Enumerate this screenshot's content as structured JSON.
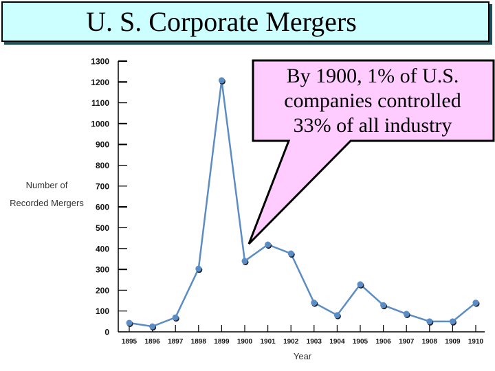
{
  "slide": {
    "title": "U. S. Corporate Mergers",
    "title_bg": "#ccffff"
  },
  "callout": {
    "lines": [
      "By 1900, 1% of U.S.",
      "companies controlled",
      "33% of all industry"
    ],
    "fill": "#ffccff",
    "points_to": "1900"
  },
  "chart_data": {
    "type": "line",
    "title": "U. S. Corporate Mergers",
    "xlabel": "Year",
    "ylabel": "Number of Recorded Mergers",
    "ylim": [
      0,
      1300
    ],
    "yticks": [
      0,
      100,
      200,
      300,
      400,
      500,
      600,
      700,
      800,
      900,
      1000,
      1100,
      1200,
      1300
    ],
    "categories": [
      "1895",
      "1896",
      "1897",
      "1898",
      "1899",
      "1900",
      "1901",
      "1902",
      "1903",
      "1904",
      "1905",
      "1906",
      "1907",
      "1908",
      "1909",
      "1910"
    ],
    "series": [
      {
        "name": "Recorded Mergers",
        "color": "#5b8cc4",
        "values": [
          43,
          26,
          69,
          303,
          1208,
          340,
          419,
          376,
          140,
          80,
          228,
          128,
          86,
          50,
          50,
          140
        ]
      }
    ],
    "grid": false,
    "legend": "none"
  },
  "axis": {
    "ylabel_line1": "Number of",
    "ylabel_line2": "Recorded Mergers",
    "xlabel": "Year"
  }
}
